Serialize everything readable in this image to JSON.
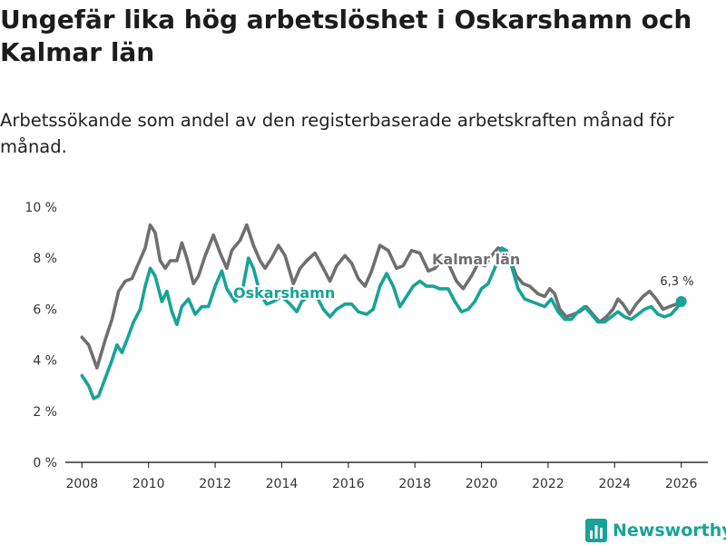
{
  "header": {
    "title": "Ungefär lika hög arbetslöshet i Oskarshamn och Kalmar län",
    "subtitle": "Arbetssökande som andel av den registerbaserade arbetskraften månad för månad."
  },
  "colors": {
    "oskarshamn": "#17a398",
    "kalmar": "#6f6f72",
    "axis": "#333333",
    "brand": "#17a398"
  },
  "brand": {
    "name": "Newsworthy",
    "icon": "bar-chart-logo-icon"
  },
  "chart_data": {
    "type": "line",
    "title": "Ungefär lika hög arbetslöshet i Oskarshamn och Kalmar län",
    "xlabel": "",
    "ylabel": "",
    "xlim": [
      2007.5,
      2026.8
    ],
    "ylim": [
      0,
      10
    ],
    "grid": false,
    "x_ticks": [
      2008,
      2010,
      2012,
      2014,
      2016,
      2018,
      2020,
      2022,
      2024,
      2026
    ],
    "x_tick_labels": [
      "2008",
      "2010",
      "2012",
      "2014",
      "2016",
      "2018",
      "2020",
      "2022",
      "2024",
      "2026"
    ],
    "y_ticks": [
      0,
      2,
      4,
      6,
      8,
      10
    ],
    "y_tick_labels": [
      "0 %",
      "2 %",
      "4 %",
      "6 %",
      "8 %",
      "10 %"
    ],
    "end_label": "6,3 %",
    "series": [
      {
        "name": "Kalmar län",
        "color": "#6f6f72",
        "points": [
          [
            2008.0,
            4.9
          ],
          [
            2008.2,
            4.6
          ],
          [
            2008.45,
            3.7
          ],
          [
            2008.7,
            4.8
          ],
          [
            2008.9,
            5.6
          ],
          [
            2009.1,
            6.7
          ],
          [
            2009.3,
            7.1
          ],
          [
            2009.5,
            7.2
          ],
          [
            2009.7,
            7.8
          ],
          [
            2009.9,
            8.4
          ],
          [
            2010.05,
            9.3
          ],
          [
            2010.2,
            9.0
          ],
          [
            2010.35,
            7.9
          ],
          [
            2010.5,
            7.6
          ],
          [
            2010.65,
            7.9
          ],
          [
            2010.85,
            7.9
          ],
          [
            2011.0,
            8.6
          ],
          [
            2011.15,
            8.0
          ],
          [
            2011.35,
            7.0
          ],
          [
            2011.5,
            7.3
          ],
          [
            2011.7,
            8.1
          ],
          [
            2011.95,
            8.9
          ],
          [
            2012.15,
            8.2
          ],
          [
            2012.35,
            7.6
          ],
          [
            2012.5,
            8.3
          ],
          [
            2012.75,
            8.7
          ],
          [
            2012.95,
            9.3
          ],
          [
            2013.15,
            8.5
          ],
          [
            2013.35,
            7.9
          ],
          [
            2013.5,
            7.6
          ],
          [
            2013.7,
            8.0
          ],
          [
            2013.9,
            8.5
          ],
          [
            2014.1,
            8.1
          ],
          [
            2014.35,
            7.0
          ],
          [
            2014.55,
            7.6
          ],
          [
            2014.75,
            7.9
          ],
          [
            2015.0,
            8.2
          ],
          [
            2015.25,
            7.6
          ],
          [
            2015.45,
            7.1
          ],
          [
            2015.65,
            7.7
          ],
          [
            2015.9,
            8.1
          ],
          [
            2016.1,
            7.8
          ],
          [
            2016.3,
            7.2
          ],
          [
            2016.5,
            6.9
          ],
          [
            2016.7,
            7.5
          ],
          [
            2016.95,
            8.5
          ],
          [
            2017.2,
            8.3
          ],
          [
            2017.45,
            7.6
          ],
          [
            2017.65,
            7.7
          ],
          [
            2017.9,
            8.3
          ],
          [
            2018.15,
            8.2
          ],
          [
            2018.4,
            7.5
          ],
          [
            2018.6,
            7.6
          ],
          [
            2018.8,
            7.9
          ],
          [
            2019.0,
            7.8
          ],
          [
            2019.25,
            7.1
          ],
          [
            2019.45,
            6.8
          ],
          [
            2019.7,
            7.3
          ],
          [
            2019.9,
            7.8
          ],
          [
            2020.1,
            7.7
          ],
          [
            2020.3,
            8.1
          ],
          [
            2020.5,
            8.4
          ],
          [
            2020.65,
            8.3
          ],
          [
            2020.85,
            8.0
          ],
          [
            2021.05,
            7.3
          ],
          [
            2021.25,
            7.0
          ],
          [
            2021.45,
            6.9
          ],
          [
            2021.7,
            6.6
          ],
          [
            2021.9,
            6.5
          ],
          [
            2022.05,
            6.8
          ],
          [
            2022.2,
            6.6
          ],
          [
            2022.35,
            6.0
          ],
          [
            2022.55,
            5.7
          ],
          [
            2022.75,
            5.8
          ],
          [
            2022.95,
            5.9
          ],
          [
            2023.15,
            6.1
          ],
          [
            2023.35,
            5.8
          ],
          [
            2023.55,
            5.5
          ],
          [
            2023.75,
            5.7
          ],
          [
            2023.95,
            6.0
          ],
          [
            2024.1,
            6.4
          ],
          [
            2024.25,
            6.2
          ],
          [
            2024.45,
            5.8
          ],
          [
            2024.65,
            6.2
          ],
          [
            2024.85,
            6.5
          ],
          [
            2025.05,
            6.7
          ],
          [
            2025.25,
            6.4
          ],
          [
            2025.45,
            6.0
          ],
          [
            2025.65,
            6.1
          ],
          [
            2025.85,
            6.2
          ],
          [
            2026.0,
            6.3
          ]
        ]
      },
      {
        "name": "Oskarshamn",
        "color": "#17a398",
        "points": [
          [
            2008.0,
            3.4
          ],
          [
            2008.2,
            3.0
          ],
          [
            2008.35,
            2.5
          ],
          [
            2008.5,
            2.6
          ],
          [
            2008.7,
            3.3
          ],
          [
            2008.9,
            4.0
          ],
          [
            2009.05,
            4.6
          ],
          [
            2009.2,
            4.3
          ],
          [
            2009.35,
            4.8
          ],
          [
            2009.55,
            5.5
          ],
          [
            2009.75,
            6.0
          ],
          [
            2009.9,
            6.9
          ],
          [
            2010.05,
            7.6
          ],
          [
            2010.2,
            7.3
          ],
          [
            2010.4,
            6.3
          ],
          [
            2010.55,
            6.7
          ],
          [
            2010.7,
            5.9
          ],
          [
            2010.85,
            5.4
          ],
          [
            2011.0,
            6.1
          ],
          [
            2011.2,
            6.4
          ],
          [
            2011.4,
            5.8
          ],
          [
            2011.6,
            6.1
          ],
          [
            2011.8,
            6.1
          ],
          [
            2012.0,
            6.9
          ],
          [
            2012.2,
            7.5
          ],
          [
            2012.35,
            6.8
          ],
          [
            2012.6,
            6.3
          ],
          [
            2012.8,
            6.6
          ],
          [
            2013.0,
            8.0
          ],
          [
            2013.15,
            7.6
          ],
          [
            2013.35,
            6.6
          ],
          [
            2013.55,
            6.2
          ],
          [
            2013.75,
            6.3
          ],
          [
            2014.0,
            6.5
          ],
          [
            2014.25,
            6.2
          ],
          [
            2014.45,
            5.9
          ],
          [
            2014.6,
            6.3
          ],
          [
            2014.8,
            6.5
          ],
          [
            2015.05,
            6.5
          ],
          [
            2015.25,
            6.0
          ],
          [
            2015.45,
            5.7
          ],
          [
            2015.65,
            6.0
          ],
          [
            2015.9,
            6.2
          ],
          [
            2016.1,
            6.2
          ],
          [
            2016.3,
            5.9
          ],
          [
            2016.55,
            5.8
          ],
          [
            2016.75,
            6.0
          ],
          [
            2016.95,
            6.9
          ],
          [
            2017.15,
            7.4
          ],
          [
            2017.35,
            6.9
          ],
          [
            2017.55,
            6.1
          ],
          [
            2017.75,
            6.5
          ],
          [
            2017.95,
            6.9
          ],
          [
            2018.15,
            7.1
          ],
          [
            2018.35,
            6.9
          ],
          [
            2018.55,
            6.9
          ],
          [
            2018.75,
            6.8
          ],
          [
            2019.0,
            6.8
          ],
          [
            2019.2,
            6.3
          ],
          [
            2019.4,
            5.9
          ],
          [
            2019.6,
            6.0
          ],
          [
            2019.8,
            6.3
          ],
          [
            2020.0,
            6.8
          ],
          [
            2020.2,
            7.0
          ],
          [
            2020.4,
            7.6
          ],
          [
            2020.6,
            8.4
          ],
          [
            2020.75,
            8.3
          ],
          [
            2020.9,
            7.7
          ],
          [
            2021.1,
            6.8
          ],
          [
            2021.3,
            6.4
          ],
          [
            2021.5,
            6.3
          ],
          [
            2021.7,
            6.2
          ],
          [
            2021.9,
            6.1
          ],
          [
            2022.1,
            6.4
          ],
          [
            2022.3,
            5.9
          ],
          [
            2022.5,
            5.6
          ],
          [
            2022.7,
            5.6
          ],
          [
            2022.9,
            5.9
          ],
          [
            2023.1,
            6.1
          ],
          [
            2023.3,
            5.8
          ],
          [
            2023.5,
            5.5
          ],
          [
            2023.7,
            5.5
          ],
          [
            2023.9,
            5.7
          ],
          [
            2024.1,
            5.9
          ],
          [
            2024.3,
            5.7
          ],
          [
            2024.5,
            5.6
          ],
          [
            2024.7,
            5.8
          ],
          [
            2024.9,
            6.0
          ],
          [
            2025.1,
            6.1
          ],
          [
            2025.3,
            5.8
          ],
          [
            2025.5,
            5.7
          ],
          [
            2025.7,
            5.8
          ],
          [
            2025.9,
            6.1
          ],
          [
            2026.0,
            6.3
          ]
        ]
      }
    ],
    "annotations": [
      "Kalmar län",
      "Oskarshamn"
    ]
  }
}
